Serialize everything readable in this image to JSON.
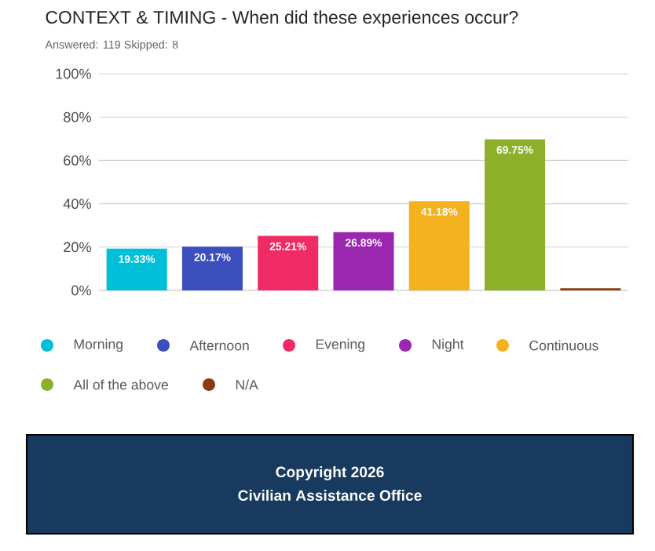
{
  "chart_data": {
    "type": "bar",
    "title": "CONTEXT & TIMING - When did these experiences occur?",
    "subtitle": "Answered: 119     Skipped: 8",
    "categories": [
      null,
      null,
      null,
      null,
      null,
      null,
      null
    ],
    "series": [
      {
        "name": "Morning",
        "color": "#00bfd8",
        "values": [
          19.33,
          null,
          null,
          null,
          null,
          null,
          null
        ],
        "value_labels": [
          "19.33%",
          null,
          null,
          null,
          null,
          null,
          null
        ]
      },
      {
        "name": "Afternoon",
        "color": "#3b4fbf",
        "values": [
          null,
          20.17,
          null,
          null,
          null,
          null,
          null
        ],
        "value_labels": [
          null,
          "20.17%",
          null,
          null,
          null,
          null,
          null
        ]
      },
      {
        "name": "Evening",
        "color": "#ef2a65",
        "values": [
          null,
          null,
          25.21,
          null,
          null,
          null,
          null
        ],
        "value_labels": [
          null,
          null,
          "25.21%",
          null,
          null,
          null,
          null
        ]
      },
      {
        "name": "Night",
        "color": "#9b27b0",
        "values": [
          null,
          null,
          null,
          26.89,
          null,
          null,
          null
        ],
        "value_labels": [
          null,
          null,
          null,
          "26.89%",
          null,
          null,
          null
        ]
      },
      {
        "name": "Continuous",
        "color": "#f5b21f",
        "values": [
          null,
          null,
          null,
          null,
          41.18,
          null,
          null
        ],
        "value_labels": [
          null,
          null,
          null,
          null,
          "41.18%",
          null,
          null
        ]
      },
      {
        "name": "All of the above",
        "color": "#8db02a",
        "values": [
          null,
          null,
          null,
          null,
          null,
          69.75,
          null
        ],
        "value_labels": [
          null,
          null,
          null,
          null,
          null,
          "69.75%",
          null
        ]
      },
      {
        "name": "N/A",
        "color": "#8b3a12",
        "values": [
          null,
          null,
          null,
          null,
          null,
          null,
          1
        ]
      }
    ],
    "ylim": [
      0,
      100
    ],
    "yticks": [
      {
        "value": 0,
        "label": "0%"
      },
      {
        "value": 20,
        "label": "20%"
      },
      {
        "value": 40,
        "label": "40%"
      },
      {
        "value": 60,
        "label": "60%"
      },
      {
        "value": 80,
        "label": "80%"
      },
      {
        "value": 100,
        "label": "100%"
      }
    ],
    "grid": "y",
    "legend": "bottom",
    "marker": "circle",
    "tick_labels": "y",
    "annotations": [
      "Copyright 2026",
      "Civilian Assistance Office"
    ]
  }
}
